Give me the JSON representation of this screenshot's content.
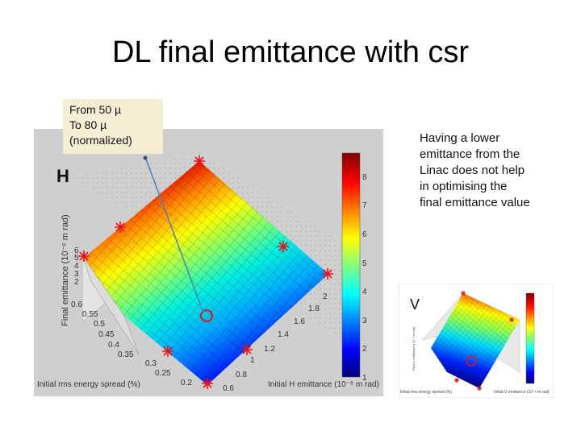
{
  "title": "DL final emittance with csr",
  "callout": {
    "line1": "From 50 µ",
    "line2": "To 80 µ",
    "line3": "(normalized)"
  },
  "note": {
    "lines": [
      "Having a lower",
      "emittance from the",
      "Linac does not help",
      "in optimising the",
      "final emittance value"
    ]
  },
  "plot_h": {
    "label": "H",
    "zlabel": "Final emittance (10⁻⁶ m rad)",
    "xlabel": "Initial rms energy spread (%)",
    "ylabel": "Initial H emittance (10⁻⁶ m rad)",
    "energy_ticks": [
      "0.6",
      "0.55",
      "0.5",
      "0.45",
      "0.4",
      "0.35",
      "0.3",
      "0.25",
      "0.2"
    ],
    "emit_ticks": [
      "0.6",
      "0.8",
      "1",
      "1.2",
      "1.4",
      "1.6",
      "1.8",
      "2"
    ],
    "z_ticks": [
      "2",
      "3",
      "4",
      "5",
      "6"
    ],
    "colorbar_ticks": [
      "1",
      "2",
      "3",
      "4",
      "5",
      "6",
      "7",
      "8"
    ],
    "colors": {
      "low": "#0000a0",
      "mid": "#00c8ff",
      "high": "#ff2000",
      "marker": "#ee1111"
    }
  },
  "plot_v": {
    "label": "V",
    "xlabel": "Initial rms energy spread (%)",
    "ylabel": "Initial V emittance (10⁻⁶ m rad)",
    "zlabel": "Final V emittance (10⁻⁶ m rad)"
  }
}
